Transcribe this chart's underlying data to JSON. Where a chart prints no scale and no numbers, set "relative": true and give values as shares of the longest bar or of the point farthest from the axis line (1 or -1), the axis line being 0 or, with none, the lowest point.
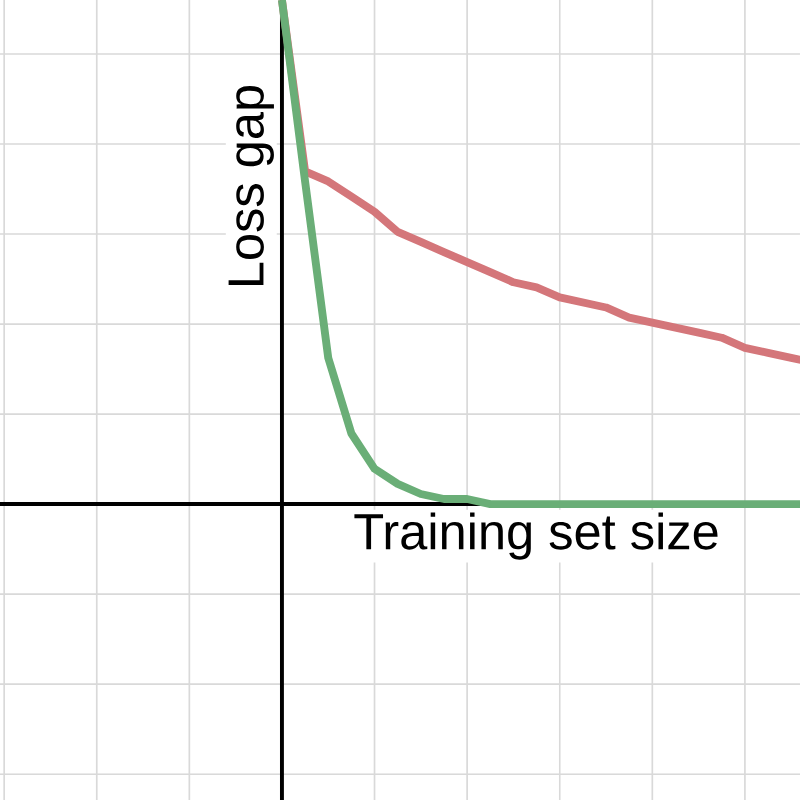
{
  "chart_data": {
    "type": "line",
    "relative": true,
    "xlabel": "Training set size",
    "ylabel": "Loss gap",
    "grid": true,
    "marker": "none",
    "line_style": "solid",
    "categories": [
      null,
      null,
      null,
      null,
      null,
      null,
      null,
      null,
      null,
      null,
      null,
      null,
      null,
      null,
      null,
      null,
      null,
      null,
      null,
      null,
      null,
      null,
      null,
      null
    ],
    "series": [
      {
        "color": "#d4767a",
        "values": [
          1.0,
          0.66,
          0.64,
          0.61,
          0.58,
          0.54,
          0.52,
          0.5,
          0.48,
          0.46,
          0.44,
          0.43,
          0.41,
          0.4,
          0.39,
          0.37,
          0.36,
          0.35,
          0.34,
          0.33,
          0.31,
          0.3,
          0.29,
          0.28
        ]
      },
      {
        "color": "#6aae77",
        "values": [
          1.0,
          0.64,
          0.29,
          0.14,
          0.07,
          0.04,
          0.02,
          0.01,
          0.01,
          0.0,
          0.0,
          0.0,
          0.0,
          0.0,
          0.0,
          0.0,
          0.0,
          0.0,
          0.0,
          0.0,
          0.0,
          0.0,
          0.0,
          0.0
        ]
      }
    ]
  }
}
